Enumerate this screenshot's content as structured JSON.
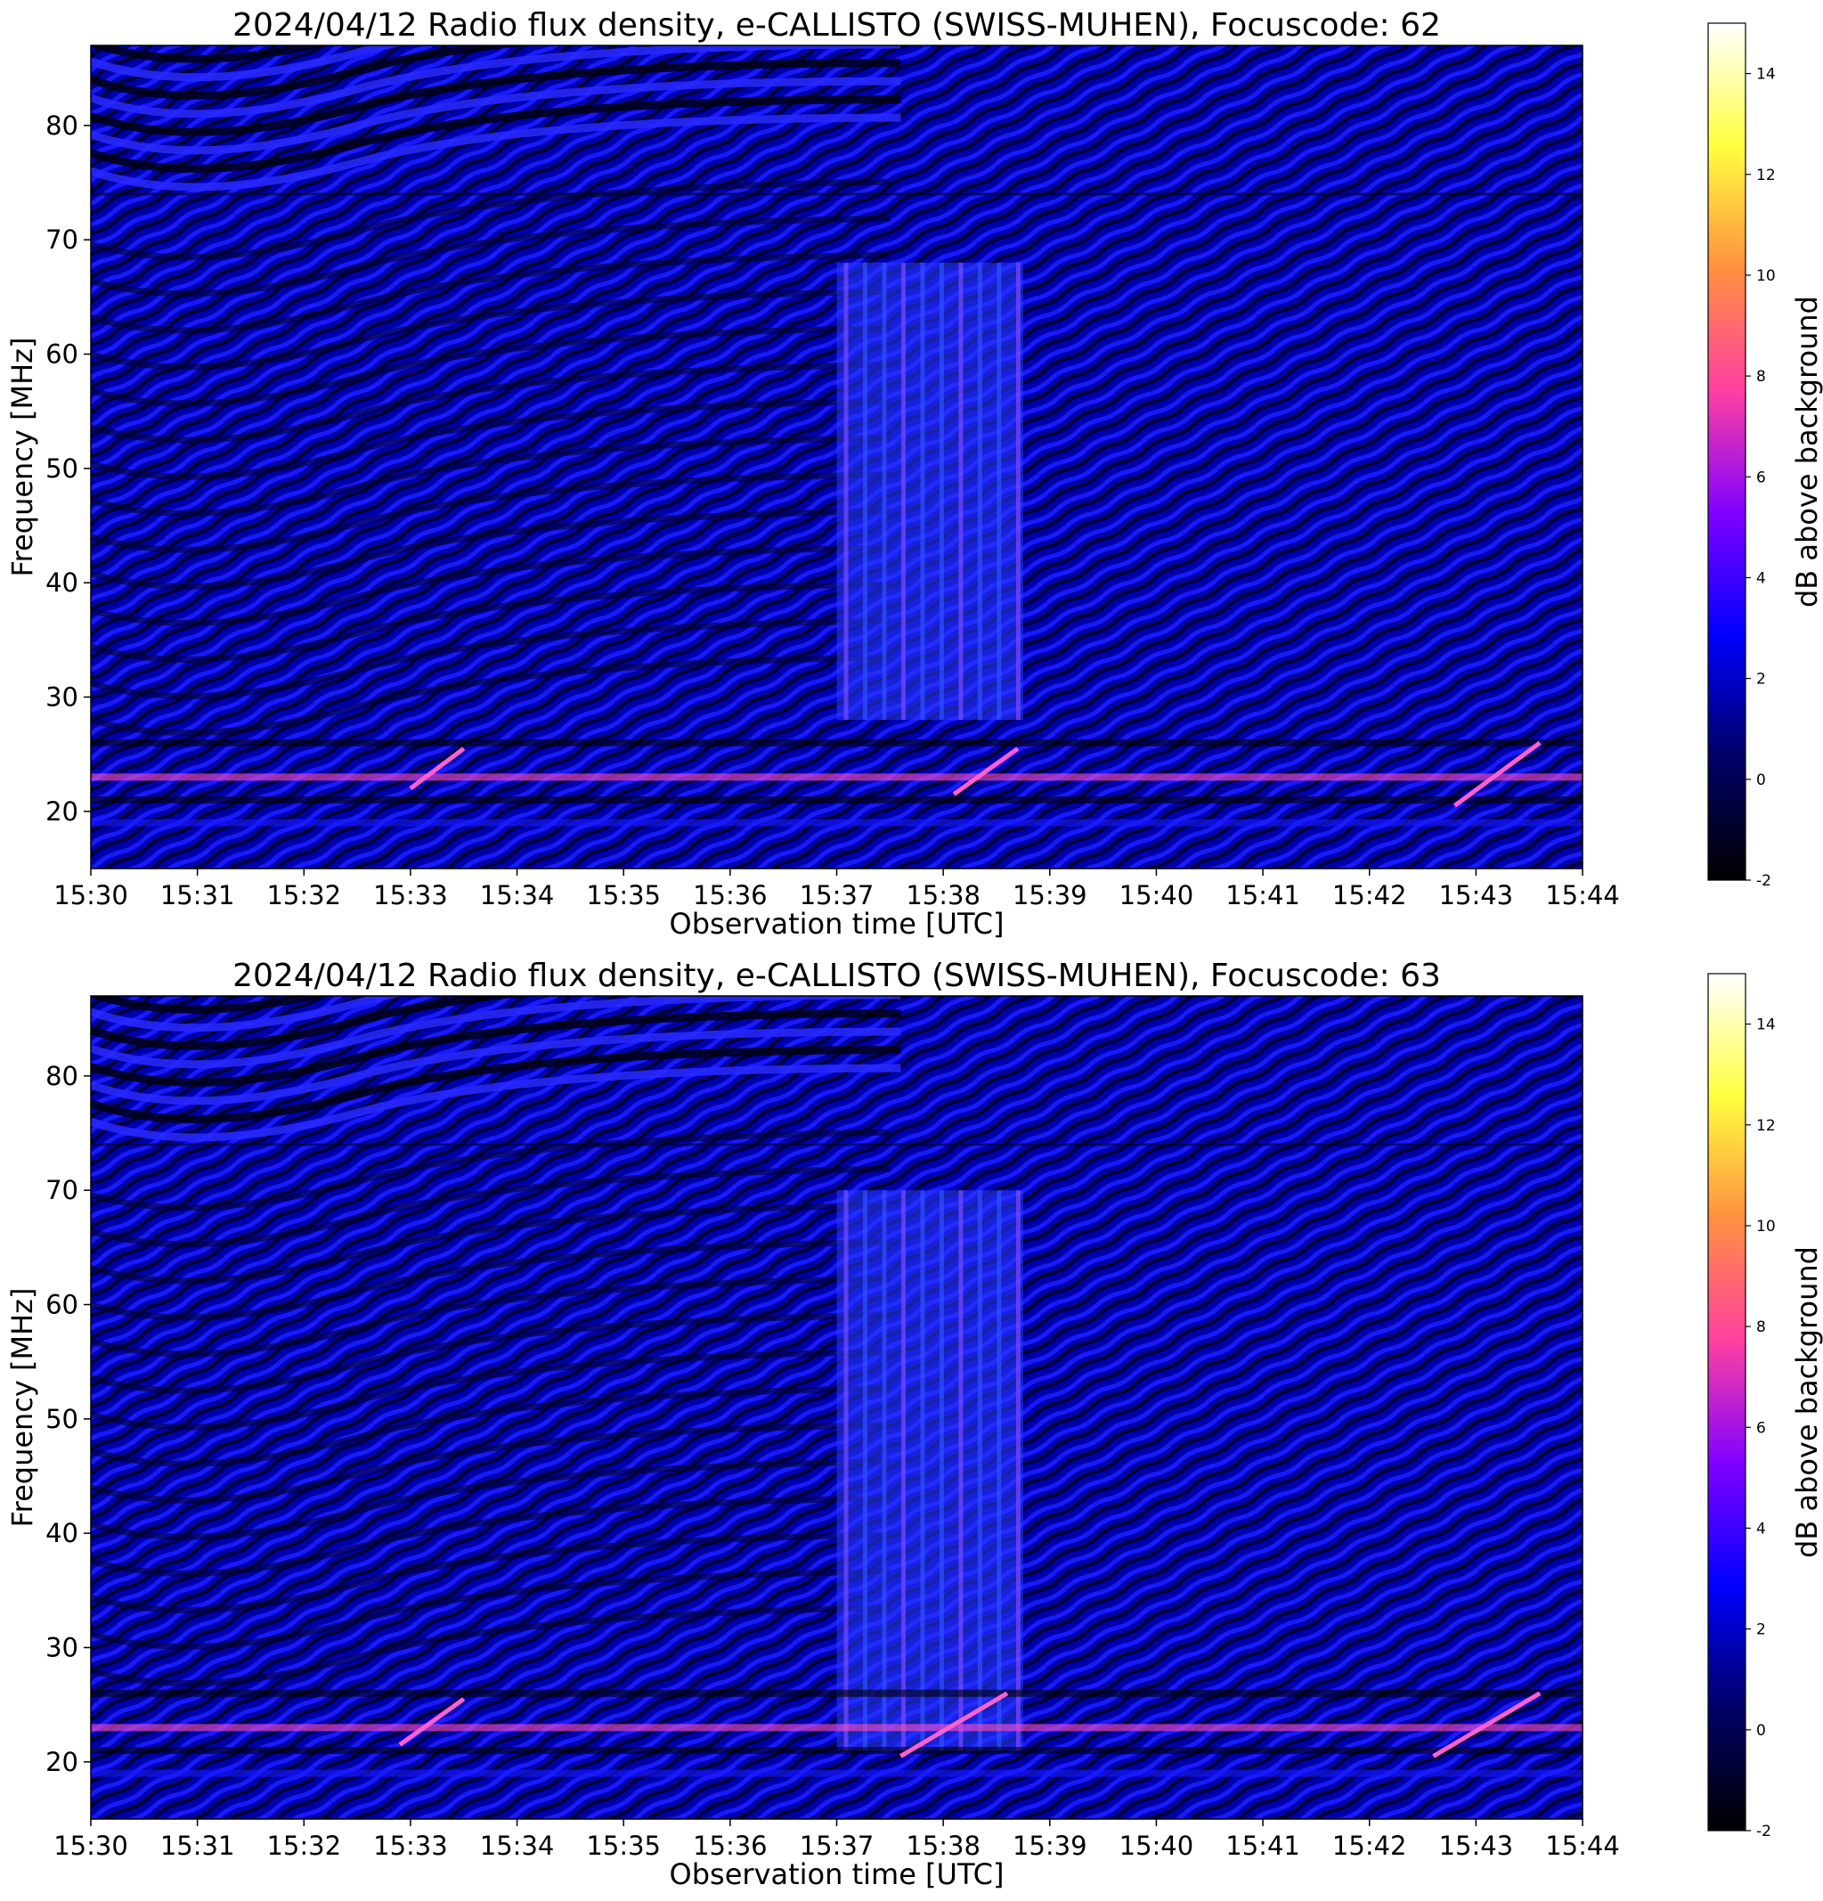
{
  "colormap": {
    "stops": [
      "#000000",
      "#000066",
      "#0000ff",
      "#8000ff",
      "#ff40a0",
      "#ff9040",
      "#ffff40",
      "#ffffff"
    ]
  },
  "chart_data": [
    {
      "type": "heatmap",
      "title": "2024/04/12  Radio flux density, e-CALLISTO (SWISS-MUHEN), Focuscode: 62",
      "xlabel": "Observation time [UTC]",
      "ylabel": "Frequency [MHz]",
      "x_ticks": [
        "15:30",
        "15:31",
        "15:32",
        "15:33",
        "15:34",
        "15:35",
        "15:36",
        "15:37",
        "15:38",
        "15:39",
        "15:40",
        "15:41",
        "15:42",
        "15:43",
        "15:44"
      ],
      "xlim": [
        "15:30",
        "15:44"
      ],
      "y_ticks": [
        20,
        30,
        40,
        50,
        60,
        70,
        80
      ],
      "ylim": [
        15,
        87
      ],
      "colorbar": {
        "label": "dB above background",
        "ticks": [
          -2,
          0,
          2,
          4,
          6,
          8,
          10,
          12,
          14
        ],
        "range": [
          -2,
          15
        ]
      },
      "features": {
        "burst_minutes": [
          7.0,
          8.75
        ],
        "burst_freq_mhz": [
          28,
          68
        ],
        "band_edge_mhz": 74,
        "rfi_lines_mhz": [
          26,
          23,
          21,
          19
        ],
        "drift_segments": [
          {
            "t": [
              3.0,
              3.5
            ],
            "f": [
              22,
              25.5
            ]
          },
          {
            "t": [
              8.1,
              8.7
            ],
            "f": [
              21.5,
              25.5
            ]
          },
          {
            "t": [
              12.8,
              13.6
            ],
            "f": [
              20.5,
              26
            ]
          }
        ]
      }
    },
    {
      "type": "heatmap",
      "title": "2024/04/12  Radio flux density, e-CALLISTO (SWISS-MUHEN), Focuscode: 63",
      "xlabel": "Observation time [UTC]",
      "ylabel": "Frequency [MHz]",
      "x_ticks": [
        "15:30",
        "15:31",
        "15:32",
        "15:33",
        "15:34",
        "15:35",
        "15:36",
        "15:37",
        "15:38",
        "15:39",
        "15:40",
        "15:41",
        "15:42",
        "15:43",
        "15:44"
      ],
      "xlim": [
        "15:30",
        "15:44"
      ],
      "y_ticks": [
        20,
        30,
        40,
        50,
        60,
        70,
        80
      ],
      "ylim": [
        15,
        87
      ],
      "colorbar": {
        "label": "dB above background",
        "ticks": [
          -2,
          0,
          2,
          4,
          6,
          8,
          10,
          12,
          14
        ],
        "range": [
          -2,
          15
        ]
      },
      "features": {
        "burst_minutes": [
          7.0,
          8.75
        ],
        "burst_freq_mhz": [
          21,
          70
        ],
        "band_edge_mhz": 74,
        "rfi_lines_mhz": [
          26,
          23,
          21,
          19
        ],
        "drift_segments": [
          {
            "t": [
              2.9,
              3.5
            ],
            "f": [
              21.5,
              25.5
            ]
          },
          {
            "t": [
              7.6,
              8.6
            ],
            "f": [
              20.5,
              26
            ]
          },
          {
            "t": [
              12.6,
              13.6
            ],
            "f": [
              20.5,
              26
            ]
          }
        ]
      }
    }
  ]
}
